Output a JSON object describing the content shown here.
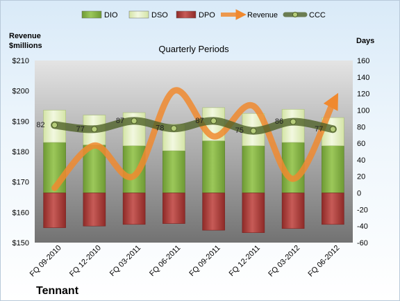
{
  "chart_data": {
    "type": "bar",
    "company": "Tennant",
    "title": "Quarterly Periods",
    "left_axis_title": [
      "Revenue",
      "$millions"
    ],
    "right_axis_title": "Days",
    "categories": [
      "FQ 09-2010",
      "FQ 12-2010",
      "FQ 03-2011",
      "FQ 06-2011",
      "FQ 09-2011",
      "FQ 12-2011",
      "FQ 03-2012",
      "FQ 06-2012"
    ],
    "left_ylim": [
      150,
      210
    ],
    "left_ticks": [
      "$150",
      "$160",
      "$170",
      "$180",
      "$190",
      "$200",
      "$210"
    ],
    "left_tick_values": [
      150,
      160,
      170,
      180,
      190,
      200,
      210
    ],
    "right_ylim": [
      -60,
      160
    ],
    "right_ticks": [
      "-60",
      "-40",
      "-20",
      "0",
      "20",
      "40",
      "60",
      "80",
      "100",
      "120",
      "140",
      "160"
    ],
    "right_tick_values": [
      -60,
      -40,
      -20,
      0,
      20,
      40,
      60,
      80,
      100,
      120,
      140,
      160
    ],
    "series": [
      {
        "name": "DIO",
        "axis": "right",
        "kind": "stacked-bar",
        "color": "#8dbb4a",
        "values": [
          61,
          58,
          57,
          51,
          63,
          57,
          61,
          57
        ]
      },
      {
        "name": "DSO",
        "axis": "right",
        "kind": "stacked-bar",
        "color": "#e6f0c8",
        "values": [
          39,
          36,
          40,
          32,
          40,
          39,
          40,
          34
        ]
      },
      {
        "name": "DPO",
        "axis": "right",
        "kind": "stacked-bar",
        "color": "#c0504d",
        "values": [
          -42,
          -40,
          -38,
          -37,
          -45,
          -48,
          -43,
          -38
        ]
      },
      {
        "name": "Revenue",
        "axis": "left",
        "kind": "smooth-line",
        "color": "#f0892f",
        "values": [
          168,
          182,
          172,
          200,
          185,
          195,
          171,
          196
        ]
      },
      {
        "name": "CCC",
        "axis": "right",
        "kind": "line",
        "color": "#4f6228",
        "values": [
          82,
          77,
          87,
          78,
          87,
          75,
          86,
          77
        ]
      }
    ],
    "data_labels": [
      "82",
      "77",
      "87",
      "78",
      "87",
      "75",
      "86",
      "77"
    ],
    "legend_position": "top"
  }
}
